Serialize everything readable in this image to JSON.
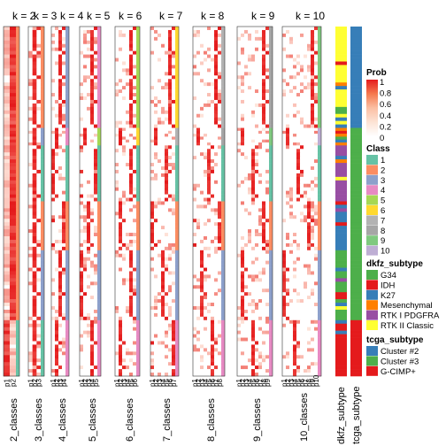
{
  "chart_data": {
    "type": "heatmap",
    "title": "",
    "panels": [
      {
        "header": "k = 2",
        "xlabel": "2_classes",
        "ncol": 2
      },
      {
        "header": "k = 3",
        "xlabel": "3_classes",
        "ncol": 3
      },
      {
        "header": "k = 4",
        "xlabel": "4_classes",
        "ncol": 4
      },
      {
        "header": "k = 5",
        "xlabel": "5_classes",
        "ncol": 5
      },
      {
        "header": "k = 6",
        "xlabel": "6_classes",
        "ncol": 6
      },
      {
        "header": "k = 7",
        "xlabel": "7_classes",
        "ncol": 7
      },
      {
        "header": "k = 8",
        "xlabel": "8_classes",
        "ncol": 8
      },
      {
        "header": "k = 9",
        "xlabel": "9_classes",
        "ncol": 9
      },
      {
        "header": "k = 10",
        "xlabel": "10_classes",
        "ncol": 10
      }
    ],
    "annotation_columns": [
      {
        "label": "dkfz_subtype"
      },
      {
        "label": "tcga_subtype"
      }
    ],
    "row_groups": [
      {
        "fraction": 0.29,
        "k2_class": 2,
        "dkfz": "RTK II Classic",
        "tcga": "Cluster #2"
      },
      {
        "fraction": 0.05,
        "k2_class": 2,
        "dkfz": "Mesenchymal",
        "tcga": "Cluster #3"
      },
      {
        "fraction": 0.16,
        "k2_class": 2,
        "dkfz": "RTK I PDGFRA",
        "tcga": "Cluster #3"
      },
      {
        "fraction": 0.14,
        "k2_class": 2,
        "dkfz": "K27",
        "tcga": "Cluster #3"
      },
      {
        "fraction": 0.2,
        "k2_class": 2,
        "dkfz": "G34",
        "tcga": "Cluster #3"
      },
      {
        "fraction": 0.16,
        "k2_class": 1,
        "dkfz": "IDH",
        "tcga": "G-CIMP+"
      }
    ],
    "legend_prob": {
      "title": "Prob",
      "ticks": [
        "1",
        "0.8",
        "0.6",
        "0.4",
        "0.2",
        "0"
      ],
      "colors": [
        "#E41A1C",
        "#F5794E",
        "#FBBFA3",
        "#FDE3D5",
        "#ffffff"
      ]
    },
    "legend_class": {
      "title": "Class",
      "items": [
        {
          "label": "1",
          "color": "#66C2A5"
        },
        {
          "label": "2",
          "color": "#FC8D62"
        },
        {
          "label": "3",
          "color": "#8DA0CB"
        },
        {
          "label": "4",
          "color": "#E78AC3"
        },
        {
          "label": "5",
          "color": "#A6D854"
        },
        {
          "label": "6",
          "color": "#FFD92F"
        },
        {
          "label": "7",
          "color": "#B3B3B3"
        },
        {
          "label": "8",
          "color": "#A6A6A6"
        },
        {
          "label": "9",
          "color": "#7FC97F"
        },
        {
          "label": "10",
          "color": "#BEAED4"
        }
      ]
    },
    "legend_dkfz": {
      "title": "dkfz_subtype",
      "items": [
        {
          "label": "G34",
          "color": "#4DAF4A"
        },
        {
          "label": "IDH",
          "color": "#E41A1C"
        },
        {
          "label": "K27",
          "color": "#377EB8"
        },
        {
          "label": "Mesenchymal",
          "color": "#FF7F00"
        },
        {
          "label": "RTK I PDGFRA",
          "color": "#984EA3"
        },
        {
          "label": "RTK II Classic",
          "color": "#FFFF33"
        }
      ]
    },
    "legend_tcga": {
      "title": "tcga_subtype",
      "items": [
        {
          "label": "Cluster #2",
          "color": "#377EB8"
        },
        {
          "label": "Cluster #3",
          "color": "#4DAF4A"
        },
        {
          "label": "G-CIMP+",
          "color": "#E41A1C"
        }
      ]
    }
  }
}
